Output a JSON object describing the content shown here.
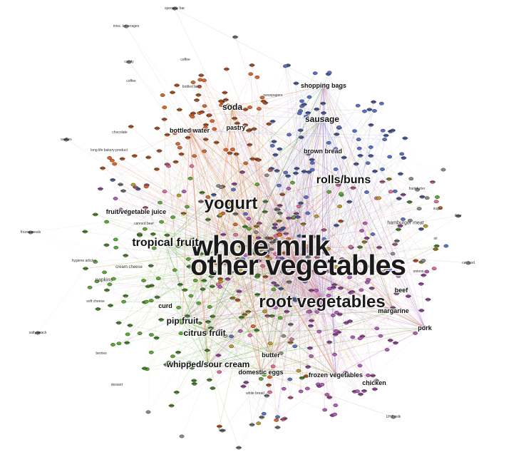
{
  "colors": {
    "orange": "#d9652b",
    "blue": "#5a6fc4",
    "green": "#5aa832",
    "purple": "#b55ab8",
    "olive": "#b99a2a",
    "pink": "#e06a9a",
    "grey": "#8a8a8a"
  },
  "labels": {
    "whole_milk": "whole milk",
    "other_vegetables": "other vegetables",
    "root_vegetables": "root vegetables",
    "yogurt": "yogurt",
    "rolls_buns": "rolls/buns",
    "tropical_fruit": "tropical fruit",
    "soda": "soda",
    "sausage": "sausage",
    "bottled_water": "bottled water",
    "fruit_vegetable_juice": "fruit/vegetable juice",
    "whipped_sour_cream": "whipped/sour cream",
    "citrus_fruit": "citrus fruit",
    "pip_fruit": "pip fruit",
    "butter": "butter",
    "domestic_eggs": "domestic eggs",
    "curd": "curd",
    "margarine": "margarine",
    "beef": "beef",
    "pork": "pork",
    "frozen_vegetables": "frozen vegetables",
    "chicken": "chicken",
    "pastry": "pastry",
    "shopping_bags": "shopping bags",
    "brown_bread": "brown bread",
    "napkins": "napkins",
    "cream_cheese": "cream cheese",
    "hamburger_meat": "hamburger meat",
    "bottled_beer": "bottled beer",
    "white_bread": "white bread",
    "canned_beer": "canned beer",
    "newspapers": "newspapers",
    "coffee": "coffee",
    "chocolate": "chocolate",
    "long_life_bakery_product": "long life bakery product",
    "misc_beverages": "misc. beverages",
    "specialty_bar": "specialty bar",
    "frozen_meals": "frozen meals",
    "hygiene_articles": "hygiene articles",
    "salty_snack": "salty snack",
    "ham": "ham",
    "sugar": "sugar",
    "oil": "oil",
    "dessert": "dessert",
    "candy": "candy",
    "berries": "berries",
    "onions": "onions",
    "cat_food": "cat food",
    "uht_milk": "UHT-milk",
    "flour": "flour",
    "frankfurter": "frankfurter",
    "waffles": "waffles",
    "coffee_top": "coffee",
    "soft_cheese": "soft cheese"
  }
}
